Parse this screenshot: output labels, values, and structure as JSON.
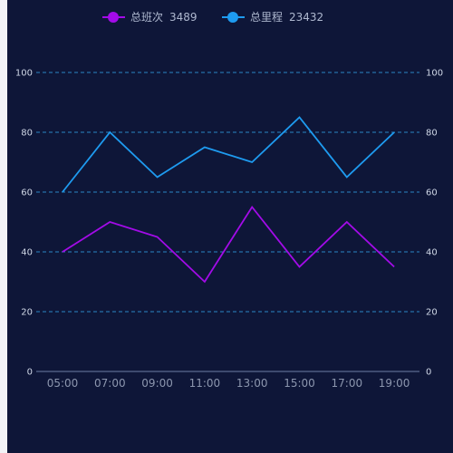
{
  "chart_data": {
    "type": "line",
    "categories": [
      "05:00",
      "07:00",
      "09:00",
      "11:00",
      "13:00",
      "15:00",
      "17:00",
      "19:00"
    ],
    "series": [
      {
        "name": "总班次",
        "legend_value": "3489",
        "color": "#a30be8",
        "values": [
          40,
          50,
          45,
          30,
          55,
          35,
          50,
          35
        ]
      },
      {
        "name": "总里程",
        "legend_value": "23432",
        "color": "#1e9bf0",
        "values": [
          60,
          80,
          65,
          75,
          70,
          85,
          65,
          80
        ]
      }
    ],
    "ylim": [
      0,
      100
    ],
    "yticks": [
      0,
      20,
      40,
      60,
      80,
      100
    ],
    "dual_y_axis": true,
    "grid": "dashed horizontal",
    "legend_position": "top-center",
    "colors": {
      "background": "#0e1638",
      "grid": "#2a86c4",
      "axis": "#6f7fa6"
    }
  }
}
